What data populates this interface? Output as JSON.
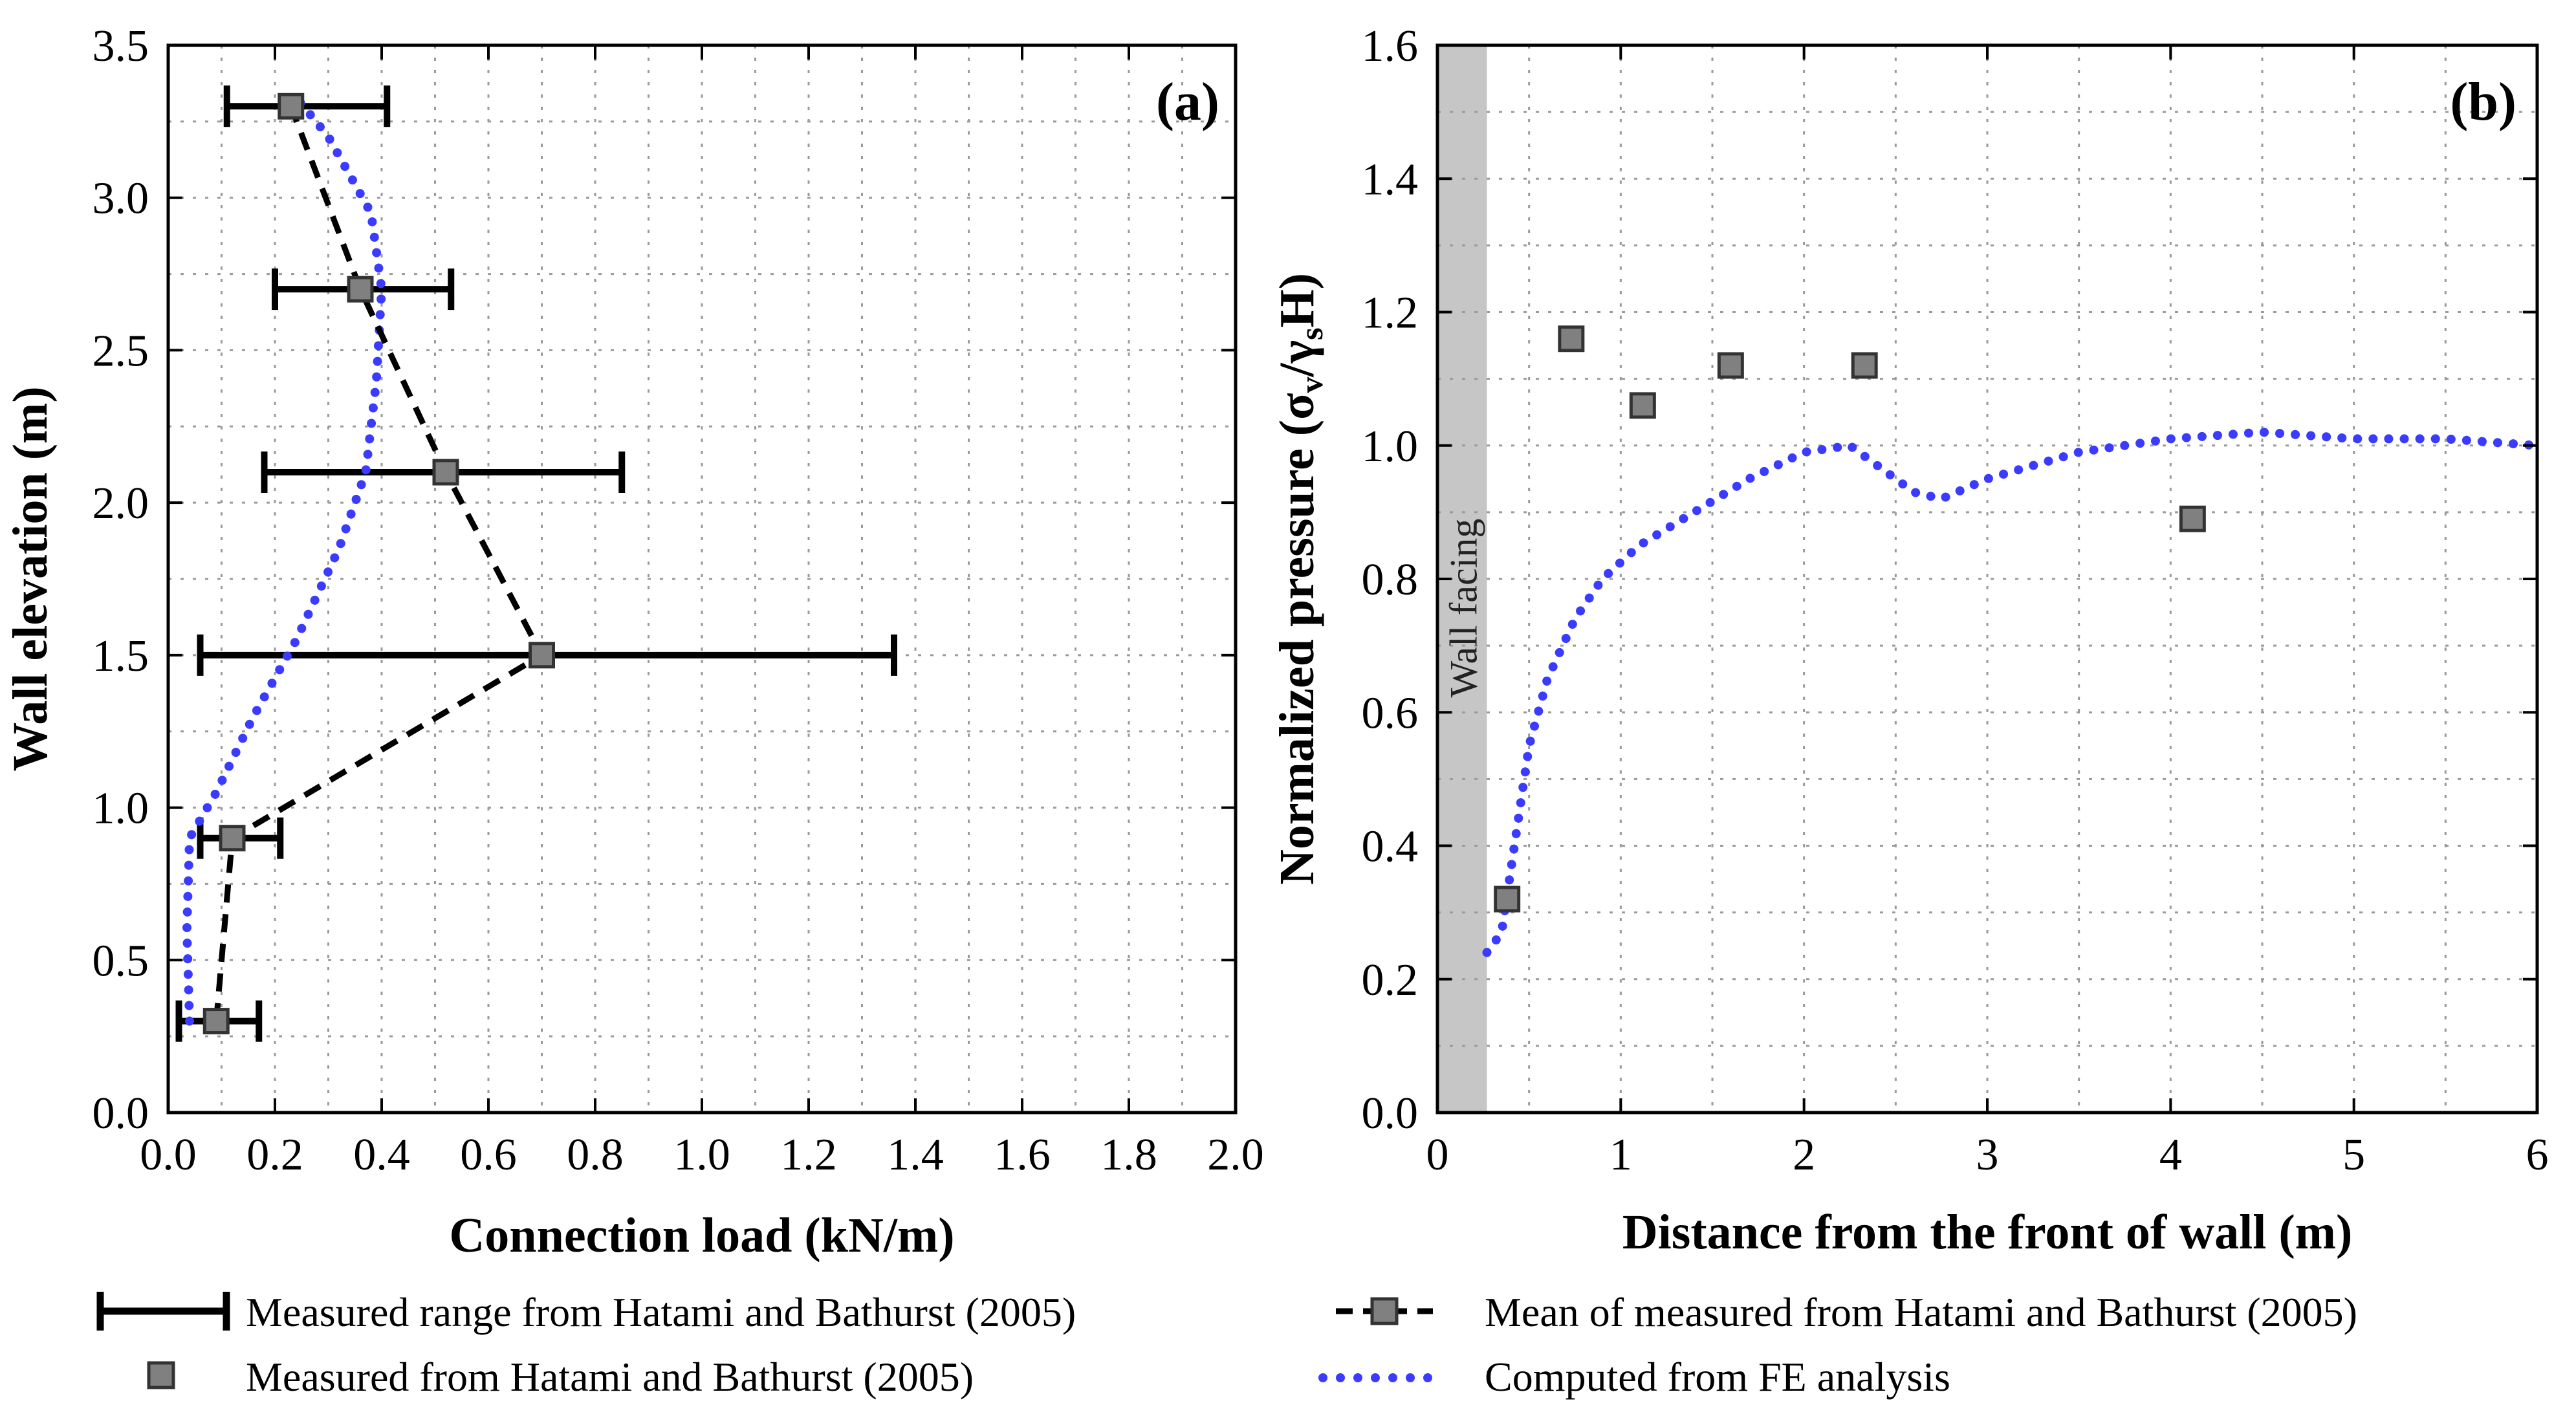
{
  "chart_data": [
    {
      "type": "line",
      "panel_label": "(a)",
      "xlabel": "Connection load (kN/m)",
      "ylabel": "Wall elevation (m)",
      "xlim": [
        0,
        2
      ],
      "ylim": [
        0,
        3.5
      ],
      "xticks": [
        "0.0",
        "0.2",
        "0.4",
        "0.6",
        "0.8",
        "1.0",
        "1.2",
        "1.4",
        "1.6",
        "1.8",
        "2.0"
      ],
      "yticks": [
        "0.0",
        "0.5",
        "1.0",
        "1.5",
        "2.0",
        "2.5",
        "3.0",
        "3.5"
      ],
      "grid": true,
      "series": [
        {
          "name": "Measured range from Hatami and Bathurst (2005)",
          "style": "range",
          "color": "#000000",
          "ranges": [
            {
              "y": 0.3,
              "xmin": 0.02,
              "xmax": 0.17
            },
            {
              "y": 0.9,
              "xmin": 0.06,
              "xmax": 0.21
            },
            {
              "y": 1.5,
              "xmin": 0.06,
              "xmax": 1.36
            },
            {
              "y": 2.1,
              "xmin": 0.18,
              "xmax": 0.85
            },
            {
              "y": 2.7,
              "xmin": 0.2,
              "xmax": 0.53
            },
            {
              "y": 3.3,
              "xmin": 0.11,
              "xmax": 0.41
            }
          ]
        },
        {
          "name": "Mean of measured from Hatami and Bathurst (2005)",
          "style": "dashed-square",
          "color": "#000000",
          "x": [
            0.09,
            0.12,
            0.7,
            0.52,
            0.36,
            0.23
          ],
          "y": [
            0.3,
            0.9,
            1.5,
            2.1,
            2.7,
            3.3
          ]
        },
        {
          "name": "Computed from FE analysis",
          "style": "dotted",
          "color": "#3b3bff",
          "x": [
            0.04,
            0.035,
            0.04,
            0.09,
            0.16,
            0.24,
            0.32,
            0.37,
            0.39,
            0.4,
            0.38,
            0.3,
            0.23
          ],
          "y": [
            0.3,
            0.6,
            0.9,
            1.05,
            1.3,
            1.55,
            1.85,
            2.1,
            2.4,
            2.7,
            2.95,
            3.2,
            3.35
          ]
        }
      ]
    },
    {
      "type": "scatter",
      "panel_label": "(b)",
      "xlabel": "Distance from the front of wall (m)",
      "ylabel": "Normalized pressure (σ",
      "ylabel_sub1": "v",
      "ylabel_mid": "/γ",
      "ylabel_sub2": "s",
      "ylabel_end": "H)",
      "xlim": [
        0,
        6
      ],
      "ylim": [
        0,
        1.6
      ],
      "xticks": [
        "0",
        "1",
        "2",
        "3",
        "4",
        "5",
        "6"
      ],
      "yticks": [
        "0.0",
        "0.2",
        "0.4",
        "0.6",
        "0.8",
        "1.0",
        "1.2",
        "1.4",
        "1.6"
      ],
      "grid": true,
      "annotation": "Wall facing",
      "wall_facing_xrange": [
        0,
        0.27
      ],
      "series": [
        {
          "name": "Measured from Hatami and Bathurst (2005)",
          "style": "square",
          "color": "#808080",
          "x": [
            0.38,
            0.73,
            1.12,
            1.6,
            2.33,
            4.12
          ],
          "y": [
            0.32,
            1.16,
            1.06,
            1.12,
            1.12,
            0.89
          ]
        },
        {
          "name": "Computed from FE analysis",
          "style": "dotted",
          "color": "#3b3bff",
          "x": [
            0.27,
            0.35,
            0.42,
            0.5,
            0.6,
            0.75,
            0.9,
            1.1,
            1.4,
            1.7,
            2.0,
            2.25,
            2.4,
            2.6,
            2.75,
            3.0,
            3.5,
            4.0,
            4.5,
            5.0,
            5.5,
            6.0
          ],
          "y": [
            0.24,
            0.27,
            0.4,
            0.55,
            0.65,
            0.74,
            0.8,
            0.85,
            0.9,
            0.95,
            0.99,
            1.0,
            0.97,
            0.93,
            0.92,
            0.95,
            0.99,
            1.01,
            1.02,
            1.01,
            1.01,
            1.0
          ]
        }
      ]
    }
  ],
  "legend": {
    "range_label": "Measured range from Hatami and Bathurst (2005)",
    "mean_label": "Mean of measured from Hatami and Bathurst (2005)",
    "measured_label": "Measured from Hatami and Bathurst (2005)",
    "fe_label": "Computed from FE analysis"
  }
}
